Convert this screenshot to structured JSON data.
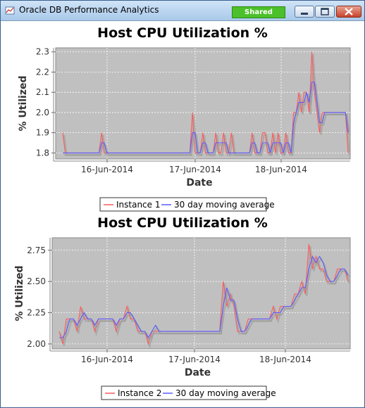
{
  "window": {
    "title": "Oracle DB Performance Analytics",
    "badge": "Shared",
    "icons": [
      "minimize-icon",
      "maximize-icon",
      "close-icon"
    ]
  },
  "colors": {
    "instance": "#ff5a5a",
    "moving_average": "#5a5aff",
    "plot_bg": "#c0c0c0"
  },
  "chart_data": [
    {
      "type": "line",
      "title": "Host CPU Utilization %",
      "xlabel": "Date",
      "ylabel": "% Utilized",
      "x_ticks": [
        "16-Jun-2014",
        "17-Jun-2014",
        "18-Jun-2014"
      ],
      "y_ticks": [
        "1.8",
        "1.9",
        "2.0",
        "2.1",
        "2.2",
        "2.3"
      ],
      "ylim": [
        1.77,
        2.32
      ],
      "grid": true,
      "legend_placement": "bottom",
      "series": [
        {
          "name": "Instance 1",
          "color": "#ff5a5a",
          "values": [
            1.9,
            1.8,
            1.8,
            1.8,
            1.8,
            1.8,
            1.8,
            1.8,
            1.8,
            1.8,
            1.8,
            1.8,
            1.8,
            1.8,
            1.8,
            1.9,
            1.8,
            1.8,
            1.8,
            1.8,
            1.8,
            1.8,
            1.8,
            1.8,
            1.8,
            1.8,
            1.8,
            1.8,
            1.8,
            1.8,
            1.8,
            1.8,
            1.8,
            1.8,
            1.8,
            1.8,
            1.8,
            1.8,
            1.8,
            1.8,
            1.8,
            1.8,
            1.8,
            1.8,
            1.8,
            1.8,
            1.8,
            1.8,
            1.8,
            1.8,
            2.0,
            1.8,
            1.8,
            1.8,
            1.9,
            1.8,
            1.8,
            1.8,
            1.8,
            1.9,
            1.8,
            1.8,
            1.9,
            1.8,
            1.8,
            1.9,
            1.8,
            1.8,
            1.8,
            1.8,
            1.8,
            1.8,
            1.8,
            1.9,
            1.8,
            1.8,
            1.8,
            1.9,
            1.9,
            1.8,
            1.8,
            1.9,
            1.8,
            1.9,
            1.8,
            1.8,
            1.9,
            1.8,
            1.8,
            2.0,
            2.0,
            2.1,
            2.0,
            2.1,
            2.1,
            2.0,
            2.3,
            2.1,
            2.0,
            1.9,
            2.0,
            2.0,
            2.0,
            2.0,
            2.0,
            2.0,
            2.0,
            2.0,
            2.0,
            2.0,
            1.8
          ]
        },
        {
          "name": "30 day moving average",
          "color": "#5a5aff",
          "values": [
            1.8,
            1.8,
            1.8,
            1.8,
            1.8,
            1.8,
            1.8,
            1.8,
            1.8,
            1.8,
            1.8,
            1.8,
            1.8,
            1.8,
            1.8,
            1.85,
            1.85,
            1.8,
            1.8,
            1.8,
            1.8,
            1.8,
            1.8,
            1.8,
            1.8,
            1.8,
            1.8,
            1.8,
            1.8,
            1.8,
            1.8,
            1.8,
            1.8,
            1.8,
            1.8,
            1.8,
            1.8,
            1.8,
            1.8,
            1.8,
            1.8,
            1.8,
            1.8,
            1.8,
            1.8,
            1.8,
            1.8,
            1.8,
            1.8,
            1.8,
            1.9,
            1.9,
            1.8,
            1.8,
            1.85,
            1.85,
            1.8,
            1.8,
            1.8,
            1.85,
            1.85,
            1.85,
            1.85,
            1.85,
            1.8,
            1.8,
            1.8,
            1.8,
            1.8,
            1.8,
            1.8,
            1.8,
            1.8,
            1.85,
            1.85,
            1.8,
            1.8,
            1.85,
            1.85,
            1.85,
            1.8,
            1.85,
            1.85,
            1.85,
            1.85,
            1.8,
            1.85,
            1.85,
            1.8,
            1.95,
            2.0,
            2.05,
            2.05,
            2.05,
            2.1,
            2.05,
            2.15,
            2.15,
            2.05,
            1.95,
            1.95,
            2.0,
            2.0,
            2.0,
            2.0,
            2.0,
            2.0,
            2.0,
            2.0,
            2.0,
            1.9
          ]
        }
      ]
    },
    {
      "type": "line",
      "title": "Host CPU Utilization %",
      "xlabel": "Date",
      "ylabel": "% Utilized",
      "x_ticks": [
        "16-Jun-2014",
        "17-Jun-2014",
        "18-Jun-2014"
      ],
      "y_ticks": [
        "2.00",
        "2.25",
        "2.50",
        "2.75"
      ],
      "ylim": [
        1.96,
        2.85
      ],
      "grid": true,
      "legend_placement": "bottom",
      "series": [
        {
          "name": "Instance 2",
          "color": "#ff5a5a",
          "values": [
            2.1,
            2.0,
            2.2,
            2.2,
            2.2,
            2.1,
            2.3,
            2.2,
            2.2,
            2.2,
            2.1,
            2.2,
            2.2,
            2.2,
            2.2,
            2.2,
            2.1,
            2.2,
            2.2,
            2.3,
            2.2,
            2.2,
            2.1,
            2.1,
            2.1,
            2.0,
            2.1,
            2.1,
            2.1,
            2.1,
            2.1,
            2.1,
            2.1,
            2.1,
            2.1,
            2.1,
            2.1,
            2.1,
            2.1,
            2.1,
            2.1,
            2.1,
            2.1,
            2.1,
            2.1,
            2.1,
            2.5,
            2.3,
            2.4,
            2.3,
            2.1,
            2.1,
            2.1,
            2.2,
            2.2,
            2.2,
            2.2,
            2.2,
            2.2,
            2.2,
            2.3,
            2.2,
            2.3,
            2.3,
            2.3,
            2.3,
            2.4,
            2.4,
            2.5,
            2.4,
            2.8,
            2.6,
            2.7,
            2.6,
            2.6,
            2.5,
            2.5,
            2.5,
            2.6,
            2.6,
            2.6,
            2.5
          ]
        },
        {
          "name": "30 day moving average",
          "color": "#5a5aff",
          "values": [
            2.05,
            2.05,
            2.1,
            2.2,
            2.2,
            2.15,
            2.2,
            2.25,
            2.2,
            2.2,
            2.15,
            2.2,
            2.2,
            2.2,
            2.2,
            2.2,
            2.15,
            2.2,
            2.2,
            2.25,
            2.25,
            2.2,
            2.15,
            2.1,
            2.1,
            2.05,
            2.1,
            2.15,
            2.1,
            2.1,
            2.1,
            2.1,
            2.1,
            2.1,
            2.1,
            2.1,
            2.1,
            2.1,
            2.1,
            2.1,
            2.1,
            2.1,
            2.1,
            2.1,
            2.1,
            2.1,
            2.3,
            2.45,
            2.35,
            2.35,
            2.2,
            2.1,
            2.1,
            2.15,
            2.2,
            2.2,
            2.2,
            2.2,
            2.2,
            2.2,
            2.25,
            2.25,
            2.25,
            2.3,
            2.3,
            2.3,
            2.35,
            2.4,
            2.45,
            2.45,
            2.6,
            2.7,
            2.65,
            2.7,
            2.65,
            2.55,
            2.5,
            2.5,
            2.55,
            2.6,
            2.6,
            2.55
          ]
        }
      ]
    }
  ]
}
